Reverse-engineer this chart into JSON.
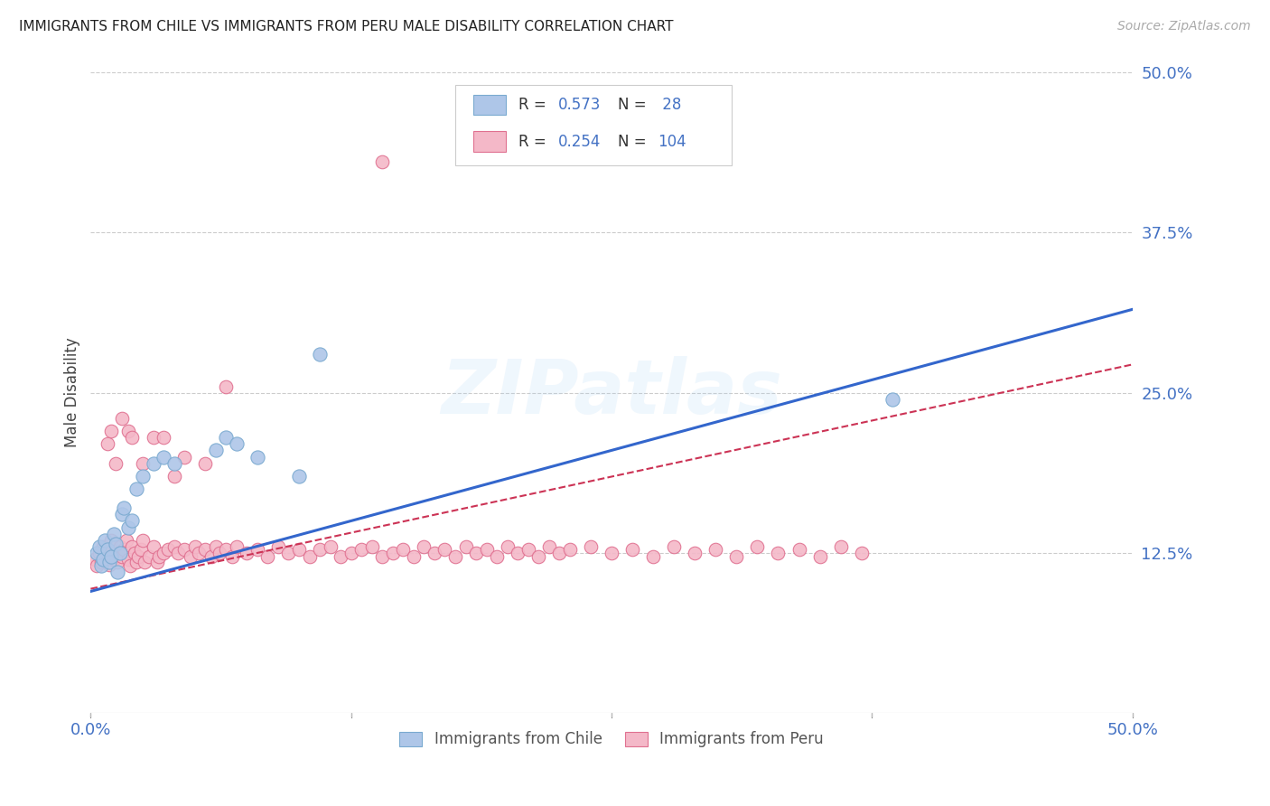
{
  "title": "IMMIGRANTS FROM CHILE VS IMMIGRANTS FROM PERU MALE DISABILITY CORRELATION CHART",
  "source": "Source: ZipAtlas.com",
  "ylabel": "Male Disability",
  "xlim": [
    0.0,
    0.5
  ],
  "ylim": [
    0.0,
    0.5
  ],
  "yticks_right": [
    0.0,
    0.125,
    0.25,
    0.375,
    0.5
  ],
  "yticklabels_right": [
    "",
    "12.5%",
    "25.0%",
    "37.5%",
    "50.0%"
  ],
  "grid_color": "#cccccc",
  "background_color": "#ffffff",
  "chile_color": "#aec6e8",
  "chile_edge_color": "#7aaad0",
  "peru_color": "#f4b8c8",
  "peru_edge_color": "#e07090",
  "chile_line_color": "#3366cc",
  "peru_line_color": "#cc3355",
  "watermark_text": "ZIPatlas",
  "legend_box_color": "#cccccc",
  "chile_x": [
    0.003,
    0.004,
    0.005,
    0.006,
    0.007,
    0.008,
    0.009,
    0.01,
    0.011,
    0.012,
    0.013,
    0.014,
    0.015,
    0.016,
    0.018,
    0.02,
    0.022,
    0.025,
    0.03,
    0.035,
    0.04,
    0.06,
    0.065,
    0.07,
    0.08,
    0.1,
    0.11,
    0.385
  ],
  "chile_y": [
    0.125,
    0.13,
    0.115,
    0.12,
    0.135,
    0.128,
    0.118,
    0.122,
    0.14,
    0.132,
    0.11,
    0.125,
    0.155,
    0.16,
    0.145,
    0.15,
    0.175,
    0.185,
    0.195,
    0.2,
    0.195,
    0.205,
    0.215,
    0.21,
    0.2,
    0.185,
    0.28,
    0.245
  ],
  "peru_x": [
    0.002,
    0.003,
    0.004,
    0.005,
    0.006,
    0.007,
    0.008,
    0.009,
    0.01,
    0.011,
    0.012,
    0.013,
    0.014,
    0.015,
    0.016,
    0.017,
    0.018,
    0.019,
    0.02,
    0.021,
    0.022,
    0.023,
    0.024,
    0.025,
    0.026,
    0.028,
    0.03,
    0.032,
    0.033,
    0.035,
    0.037,
    0.04,
    0.042,
    0.045,
    0.048,
    0.05,
    0.052,
    0.055,
    0.058,
    0.06,
    0.062,
    0.065,
    0.068,
    0.07,
    0.075,
    0.08,
    0.085,
    0.09,
    0.095,
    0.1,
    0.105,
    0.11,
    0.115,
    0.12,
    0.125,
    0.13,
    0.135,
    0.14,
    0.145,
    0.15,
    0.155,
    0.16,
    0.165,
    0.17,
    0.175,
    0.18,
    0.185,
    0.19,
    0.195,
    0.2,
    0.205,
    0.21,
    0.215,
    0.22,
    0.225,
    0.23,
    0.24,
    0.25,
    0.26,
    0.27,
    0.28,
    0.29,
    0.3,
    0.31,
    0.32,
    0.33,
    0.34,
    0.35,
    0.36,
    0.37,
    0.008,
    0.01,
    0.012,
    0.015,
    0.018,
    0.02,
    0.025,
    0.03,
    0.035,
    0.04,
    0.045,
    0.055,
    0.065,
    0.14
  ],
  "peru_y": [
    0.12,
    0.115,
    0.125,
    0.118,
    0.13,
    0.122,
    0.128,
    0.116,
    0.135,
    0.12,
    0.125,
    0.118,
    0.13,
    0.122,
    0.128,
    0.135,
    0.12,
    0.115,
    0.13,
    0.125,
    0.118,
    0.122,
    0.128,
    0.135,
    0.118,
    0.122,
    0.13,
    0.118,
    0.122,
    0.125,
    0.128,
    0.13,
    0.125,
    0.128,
    0.122,
    0.13,
    0.125,
    0.128,
    0.122,
    0.13,
    0.125,
    0.128,
    0.122,
    0.13,
    0.125,
    0.128,
    0.122,
    0.13,
    0.125,
    0.128,
    0.122,
    0.128,
    0.13,
    0.122,
    0.125,
    0.128,
    0.13,
    0.122,
    0.125,
    0.128,
    0.122,
    0.13,
    0.125,
    0.128,
    0.122,
    0.13,
    0.125,
    0.128,
    0.122,
    0.13,
    0.125,
    0.128,
    0.122,
    0.13,
    0.125,
    0.128,
    0.13,
    0.125,
    0.128,
    0.122,
    0.13,
    0.125,
    0.128,
    0.122,
    0.13,
    0.125,
    0.128,
    0.122,
    0.13,
    0.125,
    0.21,
    0.22,
    0.195,
    0.23,
    0.22,
    0.215,
    0.195,
    0.215,
    0.215,
    0.185,
    0.2,
    0.195,
    0.255,
    0.43
  ]
}
